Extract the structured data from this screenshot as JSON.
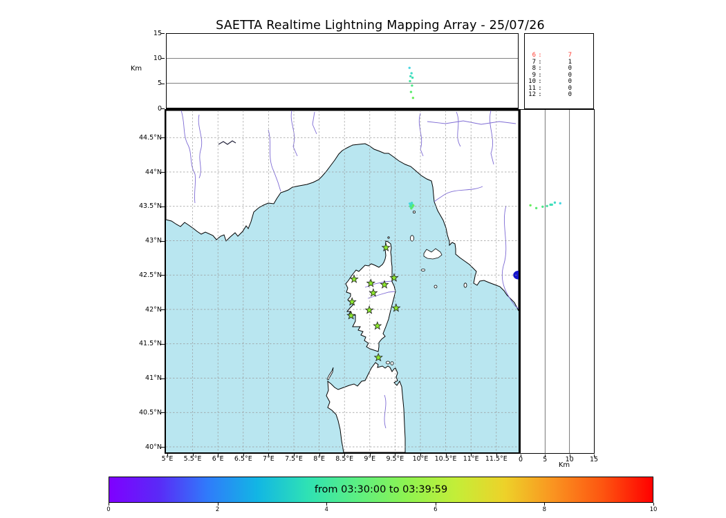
{
  "title": "SAETTA Realtime Lightning Mapping Array - 25/07/26",
  "colors": {
    "sea": "#b9e6f0",
    "land": "#ffffff",
    "coast": "#000000",
    "river": "#7d6ad4",
    "ridge": "#22223a",
    "grid": "#999999",
    "panel_grid": "#555555",
    "station_fill": "#8ce72e",
    "station_stroke": "#1d1d1d",
    "lake": "#1414cc",
    "highlight": "#ff3b30"
  },
  "alt_panel": {
    "ylabel": "Km",
    "yticks": [
      {
        "v": 15,
        "label": "15"
      },
      {
        "v": 10,
        "label": "10"
      },
      {
        "v": 5,
        "label": "5"
      },
      {
        "v": 0,
        "label": "0"
      }
    ],
    "grid_km": [
      5,
      10
    ]
  },
  "stats": {
    "rows": [
      {
        "key": "6",
        "value": "7",
        "highlight": true
      },
      {
        "key": "7",
        "value": "1",
        "highlight": false
      },
      {
        "key": "8",
        "value": "0",
        "highlight": false
      },
      {
        "key": "9",
        "value": "0",
        "highlight": false
      },
      {
        "key": "10",
        "value": "0",
        "highlight": false
      },
      {
        "key": "11",
        "value": "0",
        "highlight": false
      },
      {
        "key": "12",
        "value": "0",
        "highlight": false
      }
    ]
  },
  "map": {
    "lon_ticks": [
      {
        "v": 5,
        "label": "5°E"
      },
      {
        "v": 5.5,
        "label": "5.5°E"
      },
      {
        "v": 6,
        "label": "6°E"
      },
      {
        "v": 6.5,
        "label": "6.5°E"
      },
      {
        "v": 7,
        "label": "7°E"
      },
      {
        "v": 7.5,
        "label": "7.5°E"
      },
      {
        "v": 8,
        "label": "8°E"
      },
      {
        "v": 8.5,
        "label": "8.5°E"
      },
      {
        "v": 9,
        "label": "9°E"
      },
      {
        "v": 9.5,
        "label": "9.5°E"
      },
      {
        "v": 10,
        "label": "10°E"
      },
      {
        "v": 10.5,
        "label": "10.5°E"
      },
      {
        "v": 11,
        "label": "11°E"
      },
      {
        "v": 11.5,
        "label": "11.5°E"
      }
    ],
    "lat_ticks": [
      {
        "v": 44.5,
        "label": "44.5°N"
      },
      {
        "v": 44,
        "label": "44°N"
      },
      {
        "v": 43.5,
        "label": "43.5°N"
      },
      {
        "v": 43,
        "label": "43°N"
      },
      {
        "v": 42.5,
        "label": "42.5°N"
      },
      {
        "v": 42,
        "label": "42°N"
      },
      {
        "v": 41.5,
        "label": "41.5°N"
      },
      {
        "v": 41,
        "label": "41°N"
      },
      {
        "v": 40.5,
        "label": "40.5°N"
      },
      {
        "v": 40,
        "label": "40°N"
      }
    ],
    "stations": [
      {
        "lon": 9.32,
        "lat": 42.9
      },
      {
        "lon": 8.69,
        "lat": 42.44
      },
      {
        "lon": 9.02,
        "lat": 42.38
      },
      {
        "lon": 9.29,
        "lat": 42.36
      },
      {
        "lon": 9.48,
        "lat": 42.46
      },
      {
        "lon": 9.07,
        "lat": 42.24
      },
      {
        "lon": 8.65,
        "lat": 42.11
      },
      {
        "lon": 9.52,
        "lat": 42.02
      },
      {
        "lon": 8.99,
        "lat": 41.99
      },
      {
        "lon": 8.63,
        "lat": 41.91
      },
      {
        "lon": 9.15,
        "lat": 41.76
      },
      {
        "lon": 9.17,
        "lat": 41.3
      }
    ],
    "sources": [
      {
        "lon": 9.79,
        "lat": 43.54,
        "alt": 8.1,
        "color": "#49d6e2"
      },
      {
        "lon": 9.83,
        "lat": 43.55,
        "alt": 7,
        "color": "#43dbc8"
      },
      {
        "lon": 9.81,
        "lat": 43.52,
        "alt": 6.4,
        "color": "#40debc"
      },
      {
        "lon": 9.85,
        "lat": 43.52,
        "alt": 6.1,
        "color": "#3fe0b2"
      },
      {
        "lon": 9.8,
        "lat": 43.5,
        "alt": 5.4,
        "color": "#44e39e"
      },
      {
        "lon": 9.84,
        "lat": 43.49,
        "alt": 4.5,
        "color": "#4ce687"
      },
      {
        "lon": 9.82,
        "lat": 43.47,
        "alt": 3.2,
        "color": "#59e96f"
      },
      {
        "lon": 9.86,
        "lat": 43.51,
        "alt": 2,
        "color": "#68ec5b"
      }
    ],
    "lake": {
      "lon": 11.93,
      "lat": 42.5
    }
  },
  "lat_panel": {
    "xlabel": "Km",
    "xticks": [
      {
        "v": 0,
        "label": "0"
      },
      {
        "v": 5,
        "label": "5"
      },
      {
        "v": 10,
        "label": "10"
      },
      {
        "v": 15,
        "label": "15"
      }
    ],
    "grid_km": [
      5,
      10
    ]
  },
  "colorbar": {
    "label": "from 03:30:00 to 03:39:59",
    "min": 0,
    "max": 10,
    "ticks": [
      {
        "v": 0,
        "label": "0"
      },
      {
        "v": 2,
        "label": "2"
      },
      {
        "v": 4,
        "label": "4"
      },
      {
        "v": 6,
        "label": "6"
      },
      {
        "v": 8,
        "label": "8"
      },
      {
        "v": 10,
        "label": "10"
      }
    ],
    "gradient": [
      "#7f00ff",
      "#5a2af7",
      "#2f7cfa",
      "#12b6e4",
      "#2ee1b5",
      "#5bef83",
      "#8df351",
      "#c3ee38",
      "#edd229",
      "#fa9320",
      "#fd5410",
      "#ff0000"
    ]
  },
  "chart_data": [
    {
      "type": "scatter",
      "panel": "altitude-vs-longitude",
      "xlim": [
        5,
        11.97
      ],
      "ylim": [
        0,
        15
      ],
      "ylabel": "Km",
      "yticks": [
        0,
        5,
        10,
        15
      ],
      "grid_km": [
        5,
        10
      ],
      "points_lon_alt": [
        [
          9.79,
          8.1
        ],
        [
          9.83,
          7
        ],
        [
          9.81,
          6.4
        ],
        [
          9.85,
          6.1
        ],
        [
          9.8,
          5.4
        ],
        [
          9.84,
          4.5
        ],
        [
          9.82,
          3.2
        ],
        [
          9.86,
          2
        ]
      ]
    },
    {
      "type": "scatter",
      "panel": "map",
      "title": "Corsica region map with LMA stations (green stars) and lightning sources",
      "xlim_lon": [
        5,
        11.97
      ],
      "ylim_lat": [
        39.93,
        44.98
      ],
      "lon_ticks": [
        5,
        5.5,
        6,
        6.5,
        7,
        7.5,
        8,
        8.5,
        9,
        9.5,
        10,
        10.5,
        11,
        11.5
      ],
      "lat_ticks": [
        40,
        40.5,
        41,
        41.5,
        42,
        42.5,
        43,
        43.5,
        44,
        44.5
      ],
      "stations_lon_lat": [
        [
          9.32,
          42.9
        ],
        [
          8.69,
          42.44
        ],
        [
          9.02,
          42.38
        ],
        [
          9.29,
          42.36
        ],
        [
          9.48,
          42.46
        ],
        [
          9.07,
          42.24
        ],
        [
          8.65,
          42.11
        ],
        [
          9.52,
          42.02
        ],
        [
          8.99,
          41.99
        ],
        [
          8.63,
          41.91
        ],
        [
          9.15,
          41.76
        ],
        [
          9.17,
          41.3
        ]
      ],
      "sources_lon_lat_alt": [
        [
          9.79,
          43.54,
          8.1
        ],
        [
          9.83,
          43.55,
          7
        ],
        [
          9.81,
          43.52,
          6.4
        ],
        [
          9.85,
          43.52,
          6.1
        ],
        [
          9.8,
          43.5,
          5.4
        ],
        [
          9.84,
          43.49,
          4.5
        ],
        [
          9.82,
          43.47,
          3.2
        ],
        [
          9.86,
          43.51,
          2
        ]
      ]
    },
    {
      "type": "scatter",
      "panel": "altitude-vs-latitude",
      "xlim": [
        0,
        15
      ],
      "xlabel": "Km",
      "xticks": [
        0,
        5,
        10,
        15
      ],
      "grid_km": [
        5,
        10
      ],
      "ylim_lat": [
        39.93,
        44.98
      ]
    },
    {
      "type": "table",
      "panel": "source-counts",
      "rows": [
        [
          "6",
          "7"
        ],
        [
          "7",
          "1"
        ],
        [
          "8",
          "0"
        ],
        [
          "9",
          "0"
        ],
        [
          "10",
          "0"
        ],
        [
          "11",
          "0"
        ],
        [
          "12",
          "0"
        ]
      ],
      "highlight_row": "6"
    },
    {
      "type": "colorbar",
      "label": "from 03:30:00 to 03:39:59",
      "range": [
        0,
        10
      ],
      "ticks": [
        0,
        2,
        4,
        6,
        8,
        10
      ],
      "colormap": "rainbow"
    }
  ]
}
